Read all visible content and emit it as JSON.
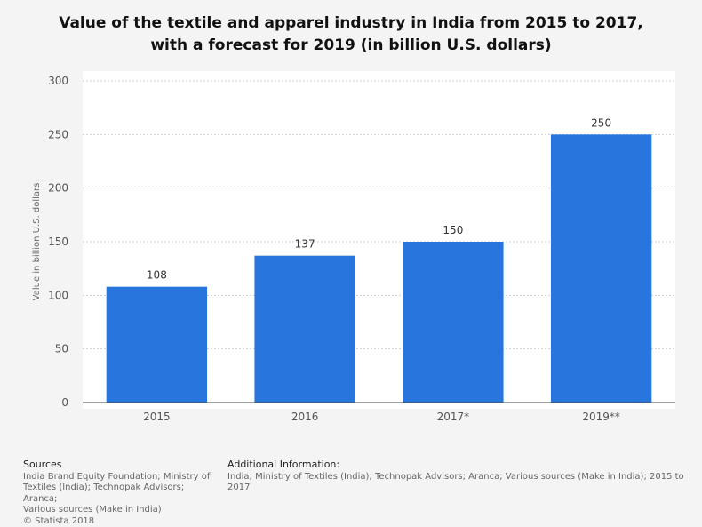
{
  "title_lines": [
    "Value of the textile and apparel industry in India from 2015 to 2017,",
    "with a forecast for 2019 (in billion U.S. dollars)"
  ],
  "chart_data": {
    "type": "bar",
    "categories": [
      "2015",
      "2016",
      "2017*",
      "2019**"
    ],
    "values": [
      108,
      137,
      150,
      250
    ],
    "data_labels": [
      "108",
      "137",
      "150",
      "250"
    ],
    "ylabel": "Value in billion U.S. dollars",
    "xlabel": "",
    "ylim": [
      0,
      300
    ],
    "yticks": [
      0,
      50,
      100,
      150,
      200,
      250,
      300
    ],
    "grid": true,
    "bar_color": "#2876dd"
  },
  "footer": {
    "sources_heading": "Sources",
    "sources_lines": [
      "India Brand Equity Foundation; Ministry of",
      "Textiles (India); Technopak Advisors; Aranca;",
      "Various sources (Make in India)",
      "© Statista 2018"
    ],
    "additional_heading": "Additional Information:",
    "additional_text": "India; Ministry of Textiles (India); Technopak Advisors; Aranca; Various sources (Make in India); 2015 to 2017"
  }
}
